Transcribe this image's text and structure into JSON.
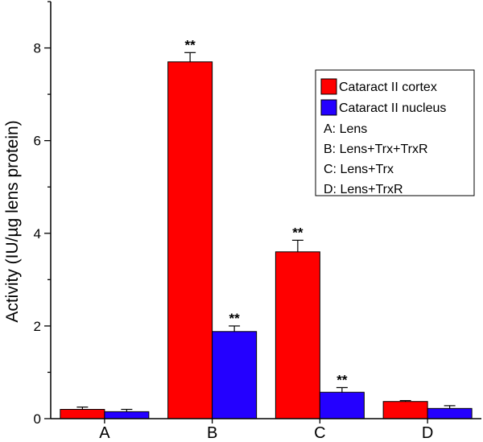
{
  "chart_data": {
    "type": "bar",
    "title": "",
    "xlabel": "",
    "ylabel": "Activity (IU/µg lens protein)",
    "ylim": [
      0,
      9
    ],
    "yticks": [
      0,
      2,
      4,
      6,
      8
    ],
    "categories": [
      "A",
      "B",
      "C",
      "D"
    ],
    "series": [
      {
        "name": "Cataract II cortex",
        "color": "#ff0000",
        "values": [
          0.2,
          7.7,
          3.6,
          0.37
        ],
        "errors": [
          0.05,
          0.2,
          0.25,
          0.02
        ],
        "significance": [
          "",
          "**",
          "**",
          ""
        ]
      },
      {
        "name": "Cataract II nucleus",
        "color": "#2400ff",
        "values": [
          0.15,
          1.88,
          0.57,
          0.22
        ],
        "errors": [
          0.05,
          0.12,
          0.1,
          0.06
        ],
        "significance": [
          "",
          "**",
          "**",
          ""
        ]
      }
    ],
    "legend_notes": [
      "A: Lens",
      "B: Lens+Trx+TrxR",
      "C: Lens+Trx",
      "D: Lens+TrxR"
    ],
    "legend_position": "right"
  }
}
